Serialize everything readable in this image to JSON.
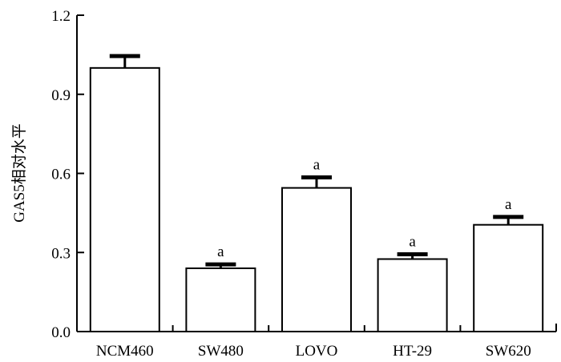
{
  "chart_data": {
    "type": "bar",
    "title": "",
    "xlabel": "",
    "ylabel": "GAS5相对水平",
    "ylim": [
      0,
      1.2
    ],
    "yticks": [
      "0.0",
      "0.3",
      "0.6",
      "0.9",
      "1.2"
    ],
    "categories": [
      "NCM460",
      "SW480",
      "LOVO",
      "HT-29",
      "SW620"
    ],
    "values": [
      1.0,
      0.24,
      0.545,
      0.275,
      0.405
    ],
    "errors": [
      0.045,
      0.015,
      0.04,
      0.018,
      0.03
    ],
    "annotations": [
      "",
      "a",
      "a",
      "a",
      "a"
    ],
    "grid": false,
    "bar_fill": "#ffffff",
    "bar_stroke": "#000000"
  }
}
